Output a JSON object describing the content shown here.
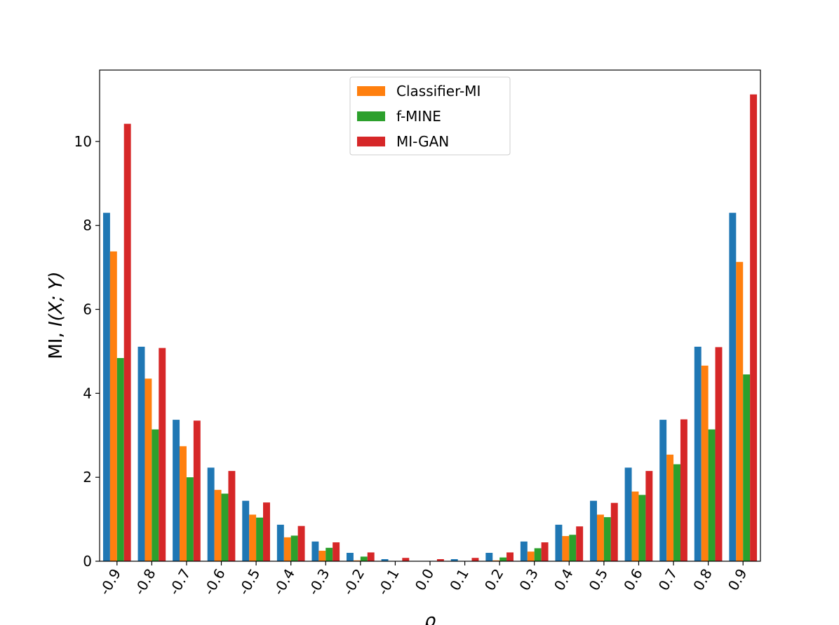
{
  "chart_data": {
    "type": "bar",
    "xlabel": "ρ",
    "ylabel_prefix": "MI, ",
    "ylabel_math": "I(X; Y)",
    "ylim": [
      0,
      11.7
    ],
    "yticks": [
      0,
      2,
      4,
      6,
      8,
      10
    ],
    "grid": false,
    "legend_position": "top-center",
    "categories": [
      "-0.9",
      "-0.8",
      "-0.7",
      "-0.6",
      "-0.5",
      "-0.4",
      "-0.3",
      "-0.2",
      "-0.1",
      "0.0",
      "0.1",
      "0.2",
      "0.3",
      "0.4",
      "0.5",
      "0.6",
      "0.7",
      "0.8",
      "0.9"
    ],
    "series": [
      {
        "name": "",
        "color": "#1f77b4",
        "in_legend": false,
        "values": [
          8.3,
          5.11,
          3.37,
          2.23,
          1.44,
          0.87,
          0.47,
          0.2,
          0.05,
          0.0,
          0.05,
          0.2,
          0.47,
          0.87,
          1.44,
          2.23,
          3.37,
          5.11,
          8.3
        ]
      },
      {
        "name": "Classifier-MI",
        "color": "#ff7f0e",
        "in_legend": true,
        "values": [
          7.38,
          4.35,
          2.74,
          1.7,
          1.11,
          0.57,
          0.25,
          0.02,
          0.0,
          0.0,
          0.0,
          0.02,
          0.23,
          0.6,
          1.11,
          1.66,
          2.54,
          4.66,
          7.13
        ]
      },
      {
        "name": "f-MINE",
        "color": "#2ca02c",
        "in_legend": true,
        "values": [
          4.84,
          3.14,
          2.0,
          1.61,
          1.04,
          0.61,
          0.32,
          0.11,
          0.0,
          0.0,
          0.0,
          0.09,
          0.31,
          0.63,
          1.05,
          1.58,
          2.31,
          3.14,
          4.45
        ]
      },
      {
        "name": "MI-GAN",
        "color": "#d62728",
        "in_legend": true,
        "values": [
          10.42,
          5.08,
          3.35,
          2.15,
          1.4,
          0.84,
          0.45,
          0.21,
          0.08,
          0.05,
          0.08,
          0.21,
          0.45,
          0.83,
          1.39,
          2.15,
          3.38,
          5.1,
          11.12
        ]
      }
    ]
  }
}
